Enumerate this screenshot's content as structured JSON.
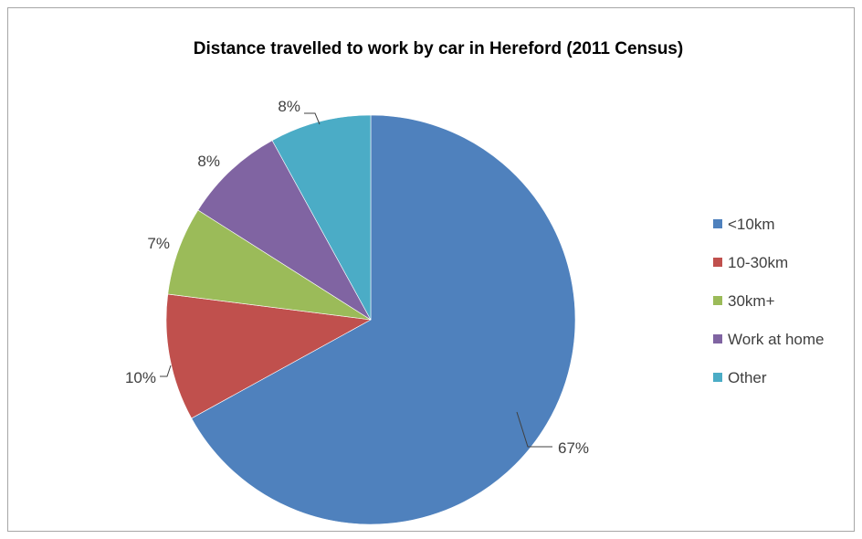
{
  "chart_data": {
    "type": "pie",
    "title": "Distance travelled to work by car in Hereford (2011 Census)",
    "start_angle_deg": 0,
    "direction": "clockwise",
    "legend_position": "right",
    "slices": [
      {
        "label": "<10km",
        "value": 67,
        "display": "67%",
        "color": "#4F81BD"
      },
      {
        "label": "10-30km",
        "value": 10,
        "display": "10%",
        "color": "#C0504D"
      },
      {
        "label": "30km+",
        "value": 7,
        "display": "7%",
        "color": "#9BBB59"
      },
      {
        "label": "Work at home",
        "value": 8,
        "display": "8%",
        "color": "#8064A2"
      },
      {
        "label": "Other",
        "value": 8,
        "display": "8%",
        "color": "#4BACC6"
      }
    ]
  }
}
